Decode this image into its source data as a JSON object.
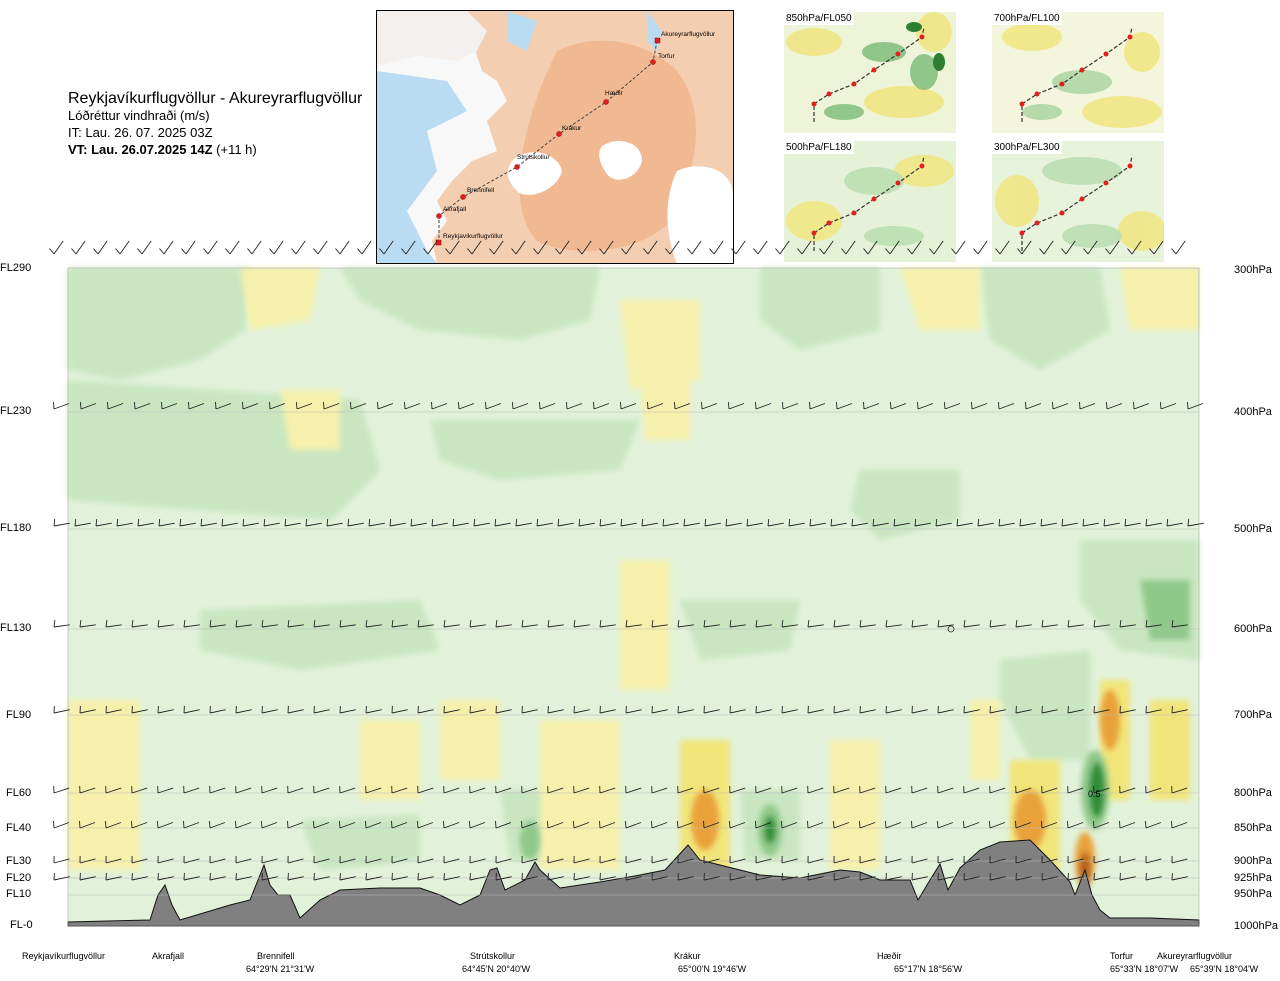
{
  "header": {
    "route": "Reykjavíkurflugvöllur - Akureyrarflugvöllur",
    "quantity": "Lóðréttur vindhraði (m/s)",
    "issue_time": "IT: Lau. 26. 07. 2025 03Z",
    "valid_prefix": "VT: Lau. 26.07.2025 14Z",
    "valid_offset": "(+11 h)"
  },
  "map": {
    "points": [
      {
        "label": "Akureyrarflugvöllur"
      },
      {
        "label": "Torfur"
      },
      {
        "label": "Hæðir"
      },
      {
        "label": "Krákur"
      },
      {
        "label": "Strútskollur"
      },
      {
        "label": "Brennifell"
      },
      {
        "label": "Akrafjall"
      },
      {
        "label": "Reykjavíkurflugvöllur"
      }
    ]
  },
  "insets": [
    {
      "label": "850hPa/FL050"
    },
    {
      "label": "700hPa/FL100"
    },
    {
      "label": "500hPa/FL180"
    },
    {
      "label": "300hPa/FL300"
    }
  ],
  "levels": [
    {
      "fl": "FL290",
      "hpa": "300hPa"
    },
    {
      "fl": "FL230",
      "hpa": "400hPa"
    },
    {
      "fl": "FL180",
      "hpa": "500hPa"
    },
    {
      "fl": "FL130",
      "hpa": "600hPa"
    },
    {
      "fl": "FL90",
      "hpa": "700hPa"
    },
    {
      "fl": "FL60",
      "hpa": "800hPa"
    },
    {
      "fl": "FL40",
      "hpa": "850hPa"
    },
    {
      "fl": "FL30",
      "hpa": "900hPa"
    },
    {
      "fl": "FL20",
      "hpa": "925hPa"
    },
    {
      "fl": "FL10",
      "hpa": "950hPa"
    },
    {
      "fl": "FL-0",
      "hpa": "1000hPa"
    }
  ],
  "locations": [
    {
      "name": "Reykjavíkurflugvöllur",
      "coord": ""
    },
    {
      "name": "Akrafjall",
      "coord": ""
    },
    {
      "name": "Brennifell",
      "coord": "64°29'N 21°31'W"
    },
    {
      "name": "Strútskollur",
      "coord": "64°45'N 20°40'W"
    },
    {
      "name": "Krákur",
      "coord": "65°00'N 19°46'W"
    },
    {
      "name": "Hæðir",
      "coord": "65°17'N 18°56'W"
    },
    {
      "name": "Torfur",
      "coord": "65°33'N 18°07'W"
    },
    {
      "name": "Akureyrarflugvöllur",
      "coord": "65°39'N 18°04'W"
    }
  ],
  "annotation": "0.5",
  "colors": {
    "pale_yellow": "#f6f0ac",
    "light_yellow": "#fbf7cf",
    "pale_green": "#e2f2da",
    "light_green": "#c9e6c1",
    "mid_green": "#8fc98a",
    "dark_green": "#2f8f37",
    "orange": "#e9a23a",
    "brown": "#b5621f",
    "terrain": "#808080",
    "sea": "#b9dcf2",
    "land": "#f3c7a3"
  }
}
